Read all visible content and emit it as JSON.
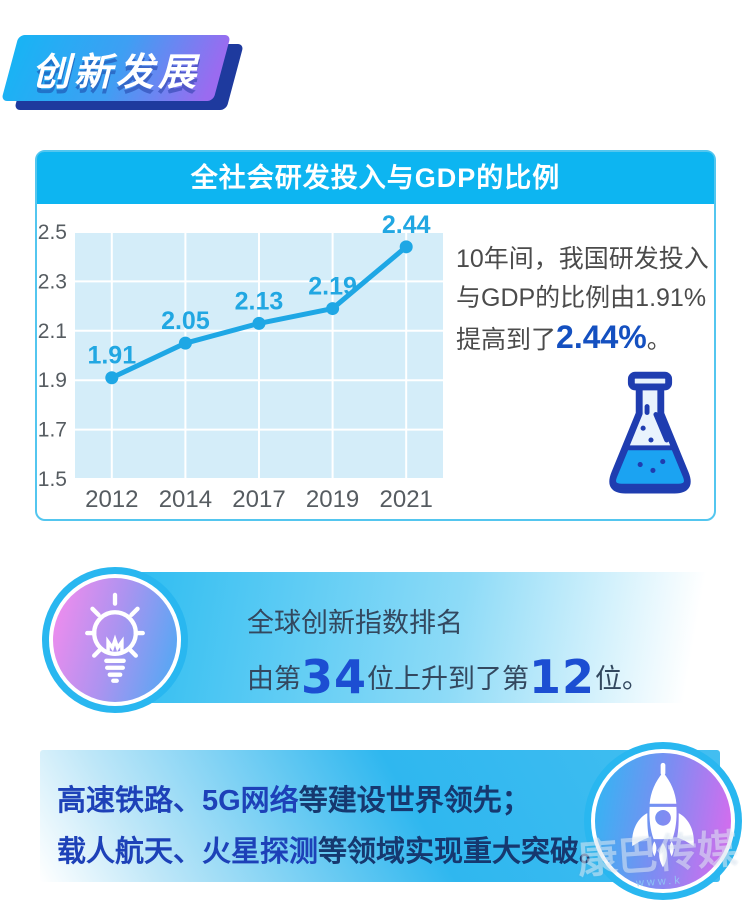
{
  "title_badge": "创新发展",
  "card": {
    "header": "全社会研发投入与GDP的比例",
    "desc": {
      "line1": "10年间，我国研发投入",
      "line2": "与GDP的比例由1.91%",
      "line3_prefix": "提高到了",
      "highlight": "2.44%",
      "line3_suffix": "。"
    }
  },
  "chart_data": {
    "type": "line",
    "title": "全社会研发投入与GDP的比例",
    "categories": [
      "2012",
      "2014",
      "2017",
      "2019",
      "2021"
    ],
    "values": [
      1.91,
      2.05,
      2.13,
      2.19,
      2.44
    ],
    "ylim": [
      1.5,
      2.5
    ],
    "yticks": [
      1.5,
      1.7,
      1.9,
      2.1,
      2.3,
      2.5
    ],
    "grid": true,
    "legend": false,
    "xlabel": "",
    "ylabel": "",
    "line_color": "#1ea7e5",
    "plot_bg": "#d4edf9",
    "label_color": "#21a7e2",
    "axis_color": "#565c61"
  },
  "rank": {
    "line1": "全球创新指数排名",
    "line2_prefix": "由第",
    "num1": "34",
    "line2_mid": "位上升到了第",
    "num2": "12",
    "line2_suffix": "位。"
  },
  "achievements": {
    "line1_hl": "高速铁路、5G网络",
    "line1_rest": "等建设世界领先；",
    "line2_hl": "载人航天、火星探测",
    "line2_rest": "等领域实现重大突破。"
  },
  "watermark": {
    "text": "康巴传媒",
    "subtext": "www.k"
  },
  "colors": {
    "primary_cyan": "#0db5f1",
    "badge_gradient_start": "#18b4f4",
    "badge_gradient_end": "#9a6bf0",
    "navy_shadow": "#1e3a9e",
    "accent_blue": "#1c4ed2",
    "highlight_blue": "#1450c0",
    "dark_navy_text": "#16386f",
    "royal_blue_text": "#1d41b8",
    "body_text": "#4b4b4b"
  }
}
